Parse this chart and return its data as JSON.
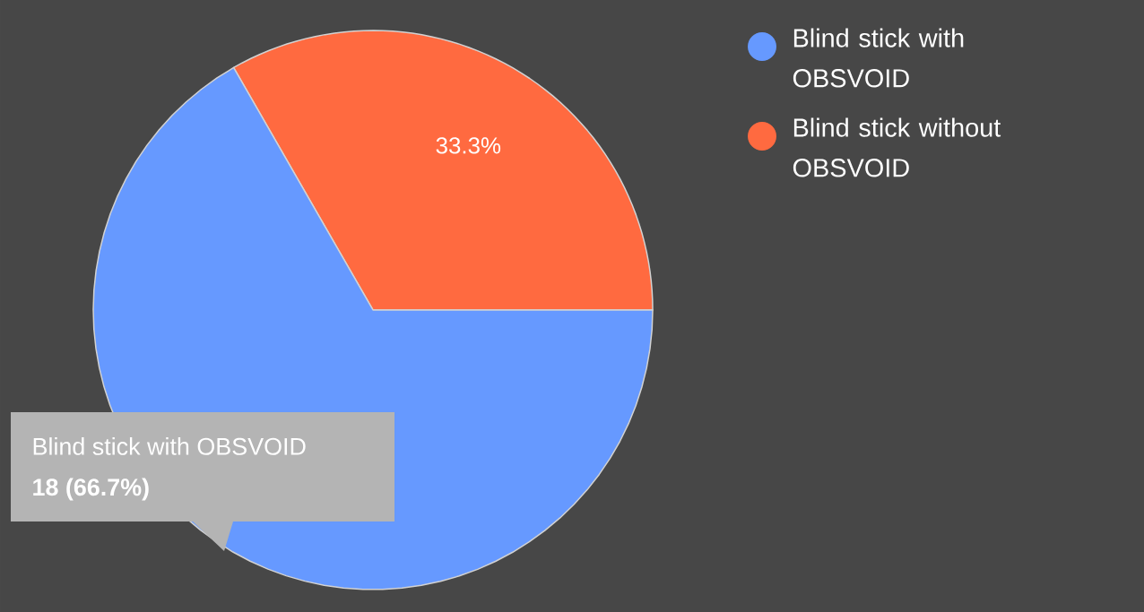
{
  "chart_data": {
    "type": "pie",
    "categories": [
      "Blind stick with OBSVOID",
      "Blind stick without OBSVOID"
    ],
    "values": [
      66.7,
      33.3
    ],
    "colors": [
      "#6699ff",
      "#ff6a40"
    ],
    "value_labels": [
      null,
      "33.3%"
    ],
    "legend": "top right",
    "annotations": [
      "Blind stick with OBSVOID",
      "18 (66.7%)"
    ]
  }
}
